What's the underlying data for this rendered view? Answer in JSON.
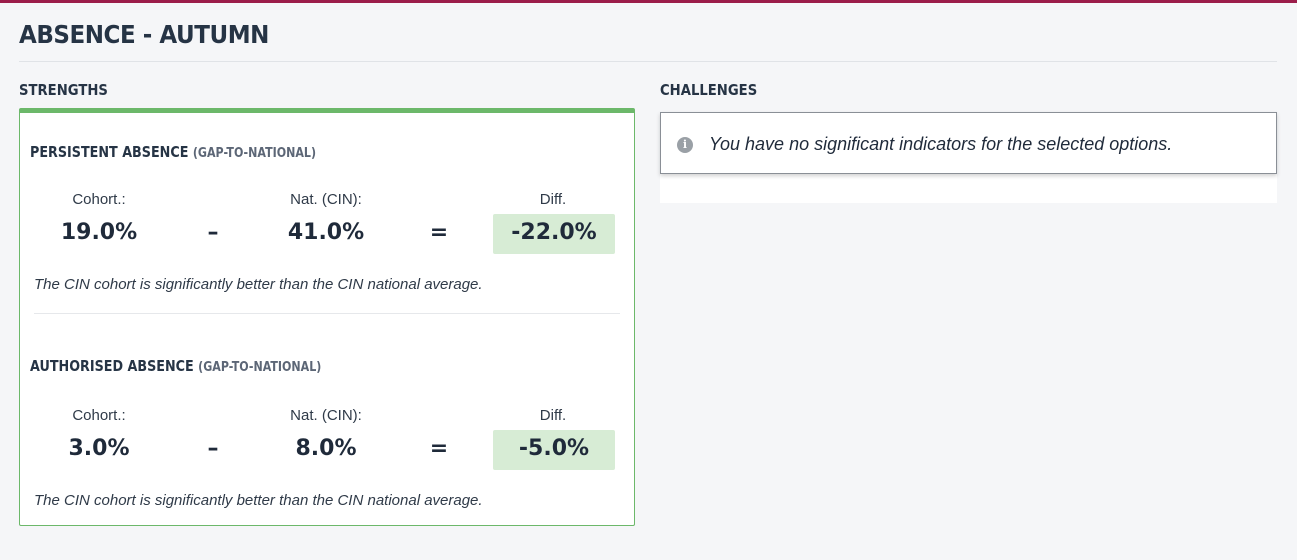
{
  "page": {
    "title": "ABSENCE - AUTUMN"
  },
  "strengths": {
    "heading": "STRENGTHS",
    "indicators": [
      {
        "title": "PERSISTENT ABSENCE",
        "subtitle": "(GAP-TO-NATIONAL)",
        "cohort_label": "Cohort.:",
        "cohort_value": "19.0%",
        "operator_minus": "–",
        "national_label": "Nat. (CIN):",
        "national_value": "41.0%",
        "operator_equals": "=",
        "diff_label": "Diff.",
        "diff_value": "-22.0%",
        "note": "The CIN cohort is significantly better than the CIN national average."
      },
      {
        "title": "AUTHORISED ABSENCE",
        "subtitle": "(GAP-TO-NATIONAL)",
        "cohort_label": "Cohort.:",
        "cohort_value": "3.0%",
        "operator_minus": "–",
        "national_label": "Nat. (CIN):",
        "national_value": "8.0%",
        "operator_equals": "=",
        "diff_label": "Diff.",
        "diff_value": "-5.0%",
        "note": "The CIN cohort is significantly better than the CIN national average."
      }
    ]
  },
  "challenges": {
    "heading": "CHALLENGES",
    "icon": "info-icon",
    "message": "You have no significant indicators for the selected options."
  },
  "colors": {
    "top_accent": "#9b1d4a",
    "strength_border": "#6cb86a",
    "diff_highlight": "#d7ecd5"
  }
}
